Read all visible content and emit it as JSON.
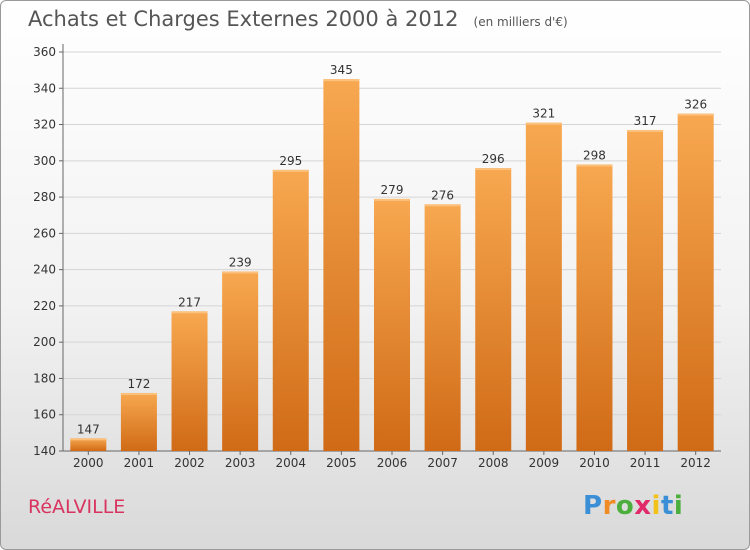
{
  "title": "Achats et Charges Externes 2000 à 2012",
  "unit_note": "(en milliers d'€)",
  "town": "RéALVILLE",
  "logo": {
    "text": "Proxiti",
    "letters": [
      "P",
      "r",
      "o",
      "x",
      "i",
      "t",
      "i"
    ],
    "colors": [
      "#3a8fd6",
      "#f08a24",
      "#4cae3c",
      "#e02a6a",
      "#f2c21a",
      "#3a8fd6",
      "#4cae3c"
    ]
  },
  "colors": {
    "bar": "#e8862e",
    "bar_light": "#f7a850",
    "bar_dark": "#d06a16",
    "grid": "#d5d5d5"
  },
  "chart_data": {
    "type": "bar",
    "categories": [
      "2000",
      "2001",
      "2002",
      "2003",
      "2004",
      "2005",
      "2006",
      "2007",
      "2008",
      "2009",
      "2010",
      "2011",
      "2012"
    ],
    "values": [
      147,
      172,
      217,
      239,
      295,
      345,
      279,
      276,
      296,
      321,
      298,
      317,
      326
    ],
    "ylim": [
      140,
      360
    ],
    "yticks": [
      140,
      160,
      180,
      200,
      220,
      240,
      260,
      280,
      300,
      320,
      340,
      360
    ],
    "grid": true,
    "data_labels": true
  }
}
